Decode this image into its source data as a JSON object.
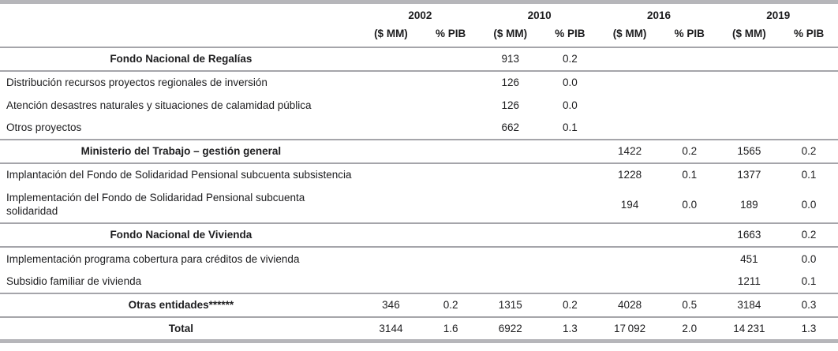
{
  "table": {
    "years": [
      "2002",
      "2010",
      "2016",
      "2019"
    ],
    "subheaders": [
      "($ MM)",
      "% PIB",
      "($ MM)",
      "% PIB",
      "($ MM)",
      "% PIB",
      "($ MM)",
      "% PIB"
    ],
    "rows": [
      {
        "type": "section",
        "label": "Fondo Nacional de Regalías",
        "values": [
          "",
          "",
          "913",
          "0.2",
          "",
          "",
          "",
          ""
        ]
      },
      {
        "type": "item",
        "label": "Distribución recursos proyectos regionales de inversión",
        "values": [
          "",
          "",
          "126",
          "0.0",
          "",
          "",
          "",
          ""
        ]
      },
      {
        "type": "item",
        "label": "Atención desastres naturales y situaciones de calamidad pública",
        "values": [
          "",
          "",
          "126",
          "0.0",
          "",
          "",
          "",
          ""
        ]
      },
      {
        "type": "item",
        "label": "Otros proyectos",
        "values": [
          "",
          "",
          "662",
          "0.1",
          "",
          "",
          "",
          ""
        ]
      },
      {
        "type": "section",
        "label": "Ministerio del Trabajo – gestión general",
        "values": [
          "",
          "",
          "",
          "",
          "1422",
          "0.2",
          "1565",
          "0.2"
        ]
      },
      {
        "type": "item",
        "label": "Implantación del Fondo de Solidaridad Pensional subcuenta subsistencia",
        "values": [
          "",
          "",
          "",
          "",
          "1228",
          "0.1",
          "1377",
          "0.1"
        ]
      },
      {
        "type": "item",
        "label": "Implementación del Fondo de Solidaridad Pensional subcuenta solidaridad",
        "values": [
          "",
          "",
          "",
          "",
          "194",
          "0.0",
          "189",
          "0.0"
        ]
      },
      {
        "type": "section",
        "label": "Fondo Nacional de Vivienda",
        "values": [
          "",
          "",
          "",
          "",
          "",
          "",
          "1663",
          "0.2"
        ]
      },
      {
        "type": "item",
        "label": "Implementación programa cobertura para créditos de vivienda",
        "values": [
          "",
          "",
          "",
          "",
          "",
          "",
          "451",
          "0.0"
        ]
      },
      {
        "type": "item",
        "label": "Subsidio familiar de vivienda",
        "values": [
          "",
          "",
          "",
          "",
          "",
          "",
          "1211",
          "0.1"
        ]
      },
      {
        "type": "section",
        "label": "Otras entidades******",
        "values": [
          "346",
          "0.2",
          "1315",
          "0.2",
          "4028",
          "0.5",
          "3184",
          "0.3"
        ]
      },
      {
        "type": "section total",
        "label": "Total",
        "values": [
          "3144",
          "1.6",
          "6922",
          "1.3",
          "17 092",
          "2.0",
          "14 231",
          "1.3"
        ]
      }
    ]
  }
}
